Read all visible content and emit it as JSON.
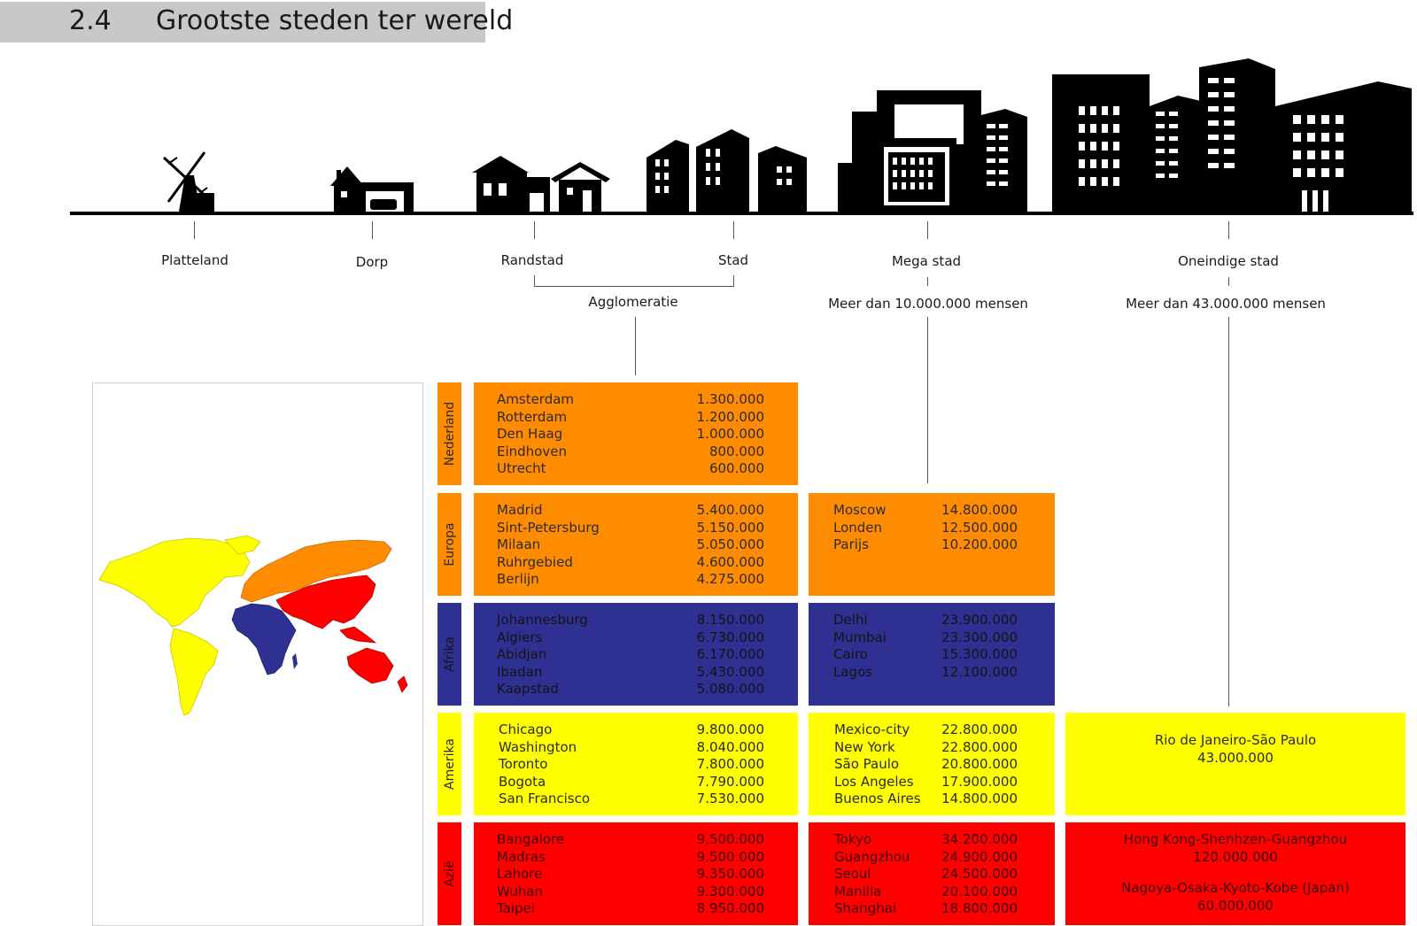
{
  "header": {
    "number": "2.4",
    "title": "Grootste steden ter wereld"
  },
  "scale_labels": {
    "platteland": "Platteland",
    "dorp": "Dorp",
    "randstad": "Randstad",
    "stad": "Stad",
    "mega_stad": "Mega stad",
    "oneindige_stad": "Oneindige stad",
    "agglomeratie": "Agglomeratie",
    "mega_desc": "Meer dan 10.000.000 mensen",
    "oneindig_desc": "Meer dan 43.000.000 mensen"
  },
  "icons": {
    "windmill": "windmill-icon",
    "house": "house-icon",
    "houses": "houses-icon",
    "buildings": "buildings-icon",
    "highrise": "highrise-icon",
    "skyline": "skyline-icon",
    "map": "world-map-icon"
  },
  "colors": {
    "nederland": "#ff8c00",
    "europa": "#ff8c00",
    "afrika": "#2e3192",
    "amerika": "#ffff00",
    "azie": "#ff0000",
    "header_bg": "#c8c8c8"
  },
  "regions": [
    {
      "name": "Nederland",
      "agglomeratie": [
        {
          "city": "Amsterdam",
          "pop": "1.300.000"
        },
        {
          "city": "Rotterdam",
          "pop": "1.200.000"
        },
        {
          "city": "Den Haag",
          "pop": "1.000.000"
        },
        {
          "city": "Eindhoven",
          "pop": "800.000"
        },
        {
          "city": "Utrecht",
          "pop": "600.000"
        }
      ]
    },
    {
      "name": "Europa",
      "agglomeratie": [
        {
          "city": "Madrid",
          "pop": "5.400.000"
        },
        {
          "city": "Sint-Petersburg",
          "pop": "5.150.000"
        },
        {
          "city": "Milaan",
          "pop": "5.050.000"
        },
        {
          "city": "Ruhrgebied",
          "pop": "4.600.000"
        },
        {
          "city": "Berlijn",
          "pop": "4.275.000"
        }
      ],
      "mega": [
        {
          "city": "Moscow",
          "pop": "14.800.000"
        },
        {
          "city": "Londen",
          "pop": "12.500.000"
        },
        {
          "city": "Parijs",
          "pop": "10.200.000"
        }
      ]
    },
    {
      "name": "Afrika",
      "agglomeratie": [
        {
          "city": "Johannesburg",
          "pop": "8.150.000"
        },
        {
          "city": "Algiers",
          "pop": "6.730.000"
        },
        {
          "city": "Abidjan",
          "pop": "6.170.000"
        },
        {
          "city": "Ibadan",
          "pop": "5.430.000"
        },
        {
          "city": "Kaapstad",
          "pop": "5.080.000"
        }
      ],
      "mega": [
        {
          "city": "Delhi",
          "pop": "23.900.000"
        },
        {
          "city": "Mumbai",
          "pop": "23.300.000"
        },
        {
          "city": "Cairo",
          "pop": "15.300.000"
        },
        {
          "city": "Lagos",
          "pop": "12.100.000"
        }
      ]
    },
    {
      "name": "Amerika",
      "agglomeratie": [
        {
          "city": "Chicago",
          "pop": "9.800.000"
        },
        {
          "city": "Washington",
          "pop": "8.040.000"
        },
        {
          "city": "Toronto",
          "pop": "7.800.000"
        },
        {
          "city": "Bogota",
          "pop": "7.790.000"
        },
        {
          "city": "San Francisco",
          "pop": "7.530.000"
        }
      ],
      "mega": [
        {
          "city": "Mexico-city",
          "pop": "22.800.000"
        },
        {
          "city": "New York",
          "pop": "22.800.000"
        },
        {
          "city": "São Paulo",
          "pop": "20.800.000"
        },
        {
          "city": "Los Angeles",
          "pop": "17.900.000"
        },
        {
          "city": "Buenos Aires",
          "pop": "14.800.000"
        }
      ],
      "oneindig": [
        {
          "name": "Rio de Janeiro-São Paulo",
          "pop": "43.000.000"
        }
      ]
    },
    {
      "name": "Azië",
      "agglomeratie": [
        {
          "city": "Bangalore",
          "pop": "9.500.000"
        },
        {
          "city": "Madras",
          "pop": "9.500.000"
        },
        {
          "city": "Lahore",
          "pop": "9.350.000"
        },
        {
          "city": "Wuhan",
          "pop": "9.300.000"
        },
        {
          "city": "Taipei",
          "pop": "8.950.000"
        }
      ],
      "mega": [
        {
          "city": "Tokyo",
          "pop": "34.200.000"
        },
        {
          "city": "Guangzhou",
          "pop": "24.900.000"
        },
        {
          "city": "Seoul",
          "pop": "24.500.000"
        },
        {
          "city": "Manilla",
          "pop": "20.100.000"
        },
        {
          "city": "Shanghai",
          "pop": "18.800.000"
        }
      ],
      "oneindig": [
        {
          "name": "Hong Kong-Shenhzen-Guangzhou",
          "pop": "120.000.000"
        },
        {
          "name": "Nagoya-Osaka-Kyoto-Kobe (Japan)",
          "pop": "60.000.000"
        }
      ]
    }
  ]
}
